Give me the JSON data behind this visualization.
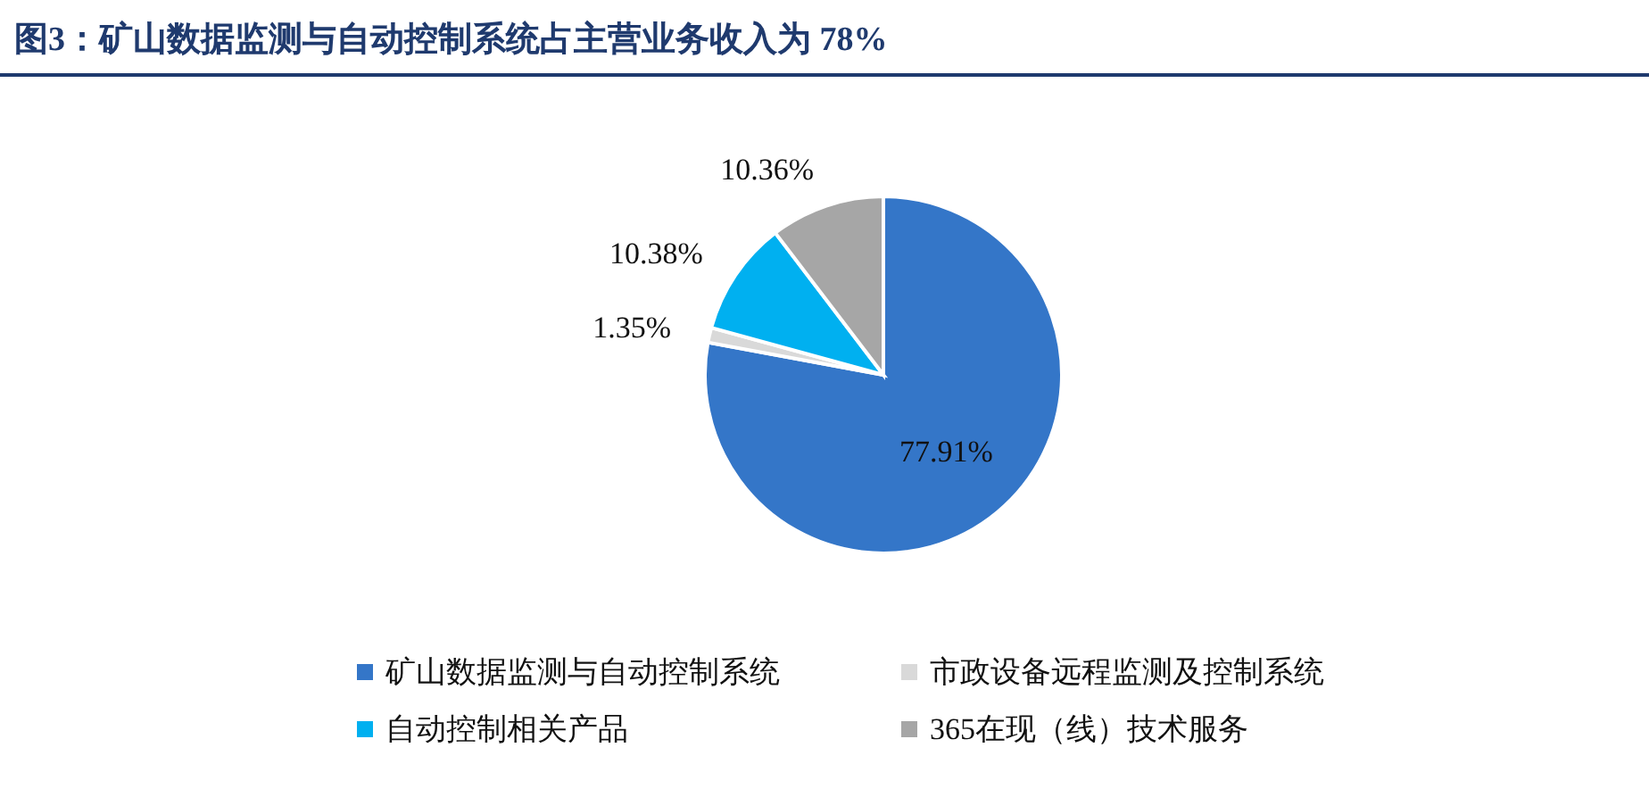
{
  "chart_data": {
    "type": "pie",
    "title": "图3：矿山数据监测与自动控制系统占主营业务收入为 78%",
    "categories": [
      "矿山数据监测与自动控制系统",
      "市政设备远程监测及控制系统",
      "自动控制相关产品",
      "365在现（线）技术服务"
    ],
    "values": [
      77.91,
      1.35,
      10.38,
      10.36
    ],
    "colors": [
      "#3476c8",
      "#d9d9d9",
      "#00b0f0",
      "#a6a6a6"
    ],
    "value_labels": [
      "77.91%",
      "1.35%",
      "10.38%",
      "10.36%"
    ],
    "legend": "bottom"
  }
}
